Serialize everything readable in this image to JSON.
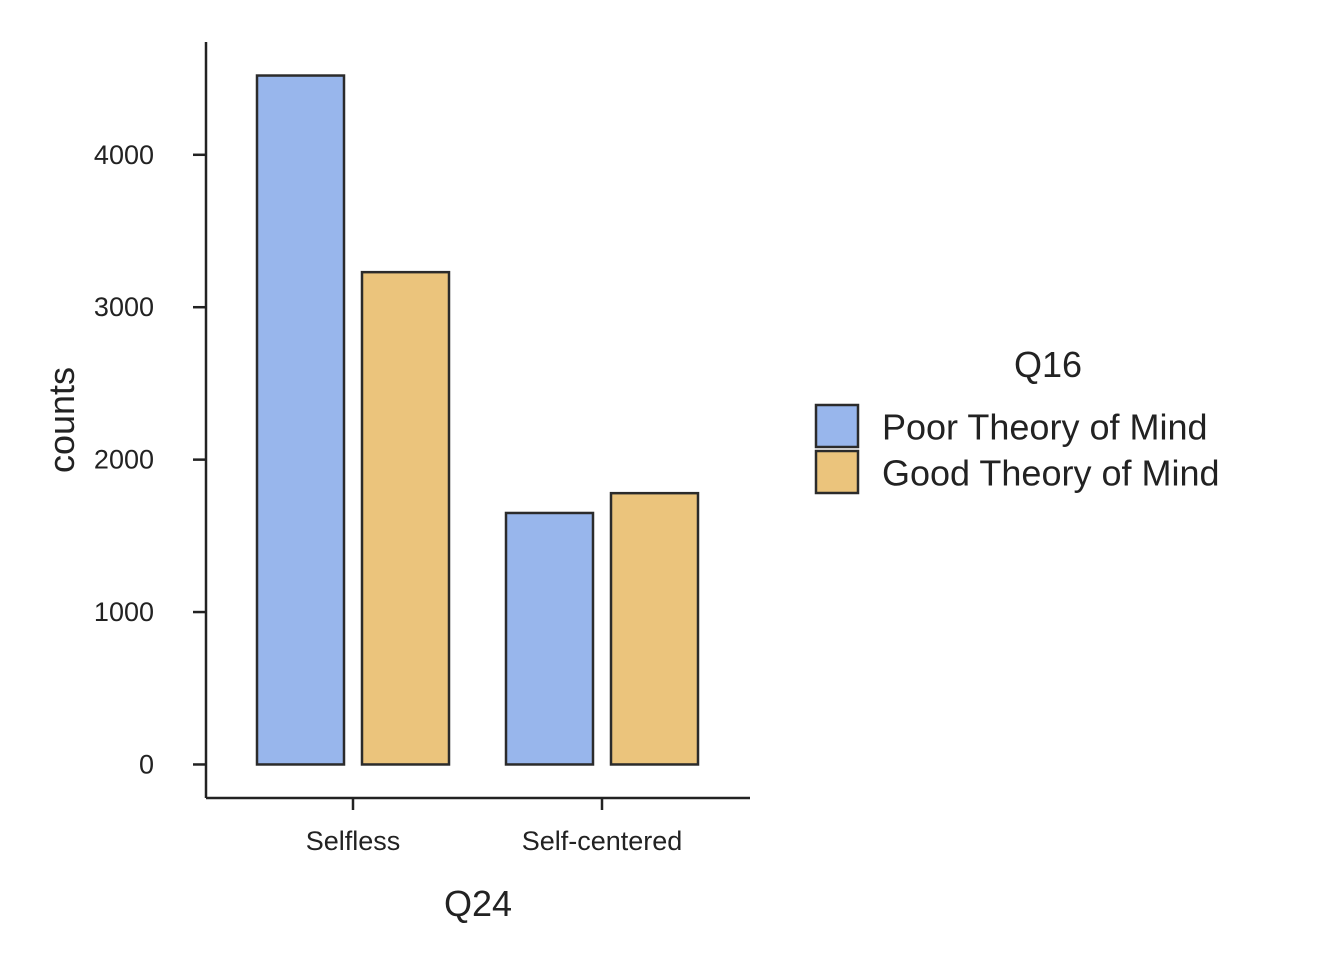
{
  "chart_data": {
    "type": "bar",
    "xlabel": "Q24",
    "ylabel": "counts",
    "categories": [
      "Selfless",
      "Self-centered"
    ],
    "series": [
      {
        "name": "Poor Theory of Mind",
        "values": [
          4520,
          1650
        ],
        "color": "#98B6EC"
      },
      {
        "name": "Good Theory of Mind",
        "values": [
          3230,
          1780
        ],
        "color": "#EBC47C"
      }
    ],
    "yticks": [
      0,
      1000,
      2000,
      3000,
      4000
    ],
    "ylim": [
      -220,
      4740
    ],
    "grid": false,
    "legend": {
      "title": "Q16",
      "position": "right"
    },
    "bar_outline_color": "#2B2B2B"
  }
}
